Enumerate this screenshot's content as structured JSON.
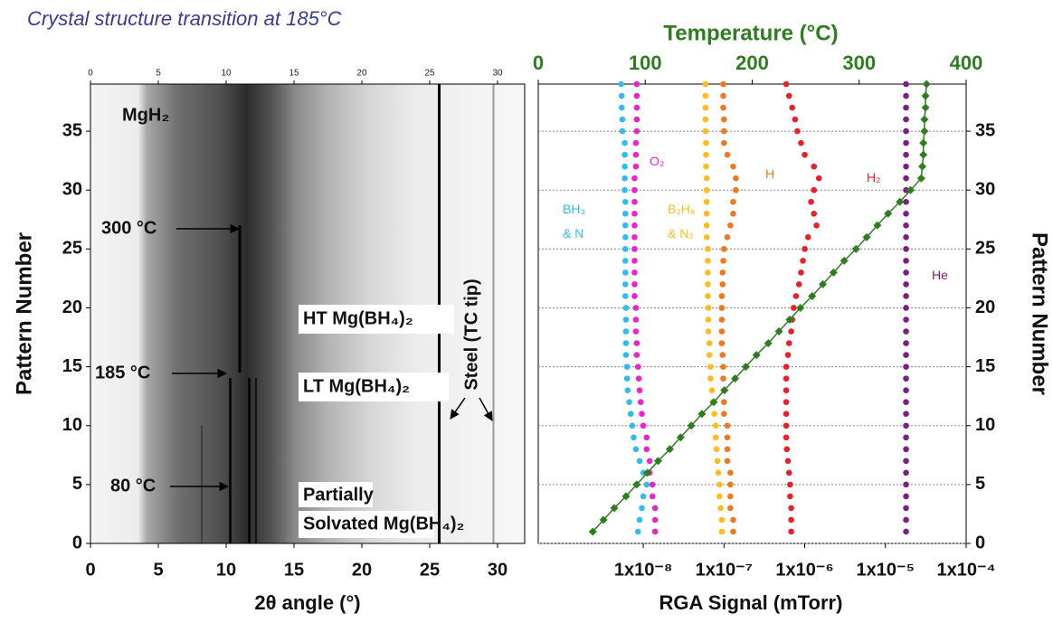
{
  "chart_data": [
    {
      "type": "image",
      "title": "Crystal structure transition at 185°C",
      "xlabel": "2θ angle (°)",
      "ylabel": "Pattern Number",
      "xlim": [
        0,
        32
      ],
      "xticks": [
        0,
        5,
        10,
        15,
        20,
        25,
        30
      ],
      "ylim": [
        0,
        39
      ],
      "yticks": [
        0,
        5,
        10,
        15,
        20,
        25,
        30,
        35
      ],
      "annotations": [
        "MgH₂",
        "300 °C",
        "185 °C",
        "80 °C",
        "HT Mg(BH₄)₂",
        "LT Mg(BH₄)₂",
        "Partially",
        "Solvated Mg(BH₄)₂",
        "Steel (TC tip)"
      ]
    },
    {
      "type": "scatter",
      "xlabel": "RGA Signal (mTorr)",
      "x2label": "Temperature (°C)",
      "ylabel": "Pattern Number",
      "log_x": true,
      "grid": true,
      "xlim": [
        5e-10,
        0.0001
      ],
      "xticks": [
        {
          "value": 1e-08,
          "label": "1x10⁻⁸"
        },
        {
          "value": 1e-07,
          "label": "1x10⁻⁷"
        },
        {
          "value": 1e-06,
          "label": "1x10⁻⁶"
        },
        {
          "value": 1e-05,
          "label": "1x10⁻⁵"
        },
        {
          "value": 0.0001,
          "label": "1x10⁻⁴"
        }
      ],
      "x2lim": [
        0,
        400
      ],
      "x2ticks": [
        0,
        100,
        200,
        300,
        400
      ],
      "ylim": [
        0,
        39
      ],
      "yticks": [
        0,
        5,
        10,
        15,
        20,
        25,
        30,
        35
      ],
      "y": [
        1,
        2,
        3,
        4,
        5,
        6,
        7,
        8,
        9,
        10,
        11,
        12,
        13,
        14,
        15,
        16,
        17,
        18,
        19,
        20,
        21,
        22,
        23,
        24,
        25,
        26,
        27,
        28,
        29,
        30,
        31,
        32,
        33,
        34,
        35,
        36,
        37,
        38,
        39
      ],
      "series": [
        {
          "name": "BH₃ & N",
          "color": "#33bbee",
          "values": [
            8.6e-09,
            9e-09,
            9.6e-09,
            1e-08,
            1.1e-08,
            1e-08,
            9e-09,
            8.1e-09,
            7.6e-09,
            7.3e-09,
            7e-09,
            6.7e-09,
            6.4e-09,
            6.3e-09,
            6.3e-09,
            6.1e-09,
            6.1e-09,
            6.1e-09,
            6.1e-09,
            6.1e-09,
            6e-09,
            6e-09,
            6e-09,
            6e-09,
            6e-09,
            6e-09,
            6e-09,
            6e-09,
            6e-09,
            5.9e-09,
            5.9e-09,
            5.9e-09,
            5.9e-09,
            5.9e-09,
            5.5e-09,
            5.5e-09,
            5.4e-09,
            5.4e-09,
            5.3e-09
          ]
        },
        {
          "name": "O₂",
          "color": "#ee22cc",
          "values": [
            1.4e-08,
            1.4e-08,
            1.4e-08,
            1.3e-08,
            1.3e-08,
            1.2e-08,
            1.2e-08,
            1.1e-08,
            1.1e-08,
            1e-08,
            9.6e-09,
            9.3e-09,
            9e-09,
            8.8e-09,
            8.6e-09,
            8.3e-09,
            8.3e-09,
            8.1e-09,
            8.1e-09,
            8.1e-09,
            7.8e-09,
            7.8e-09,
            7.8e-09,
            7.8e-09,
            7.8e-09,
            7.8e-09,
            7.8e-09,
            7.8e-09,
            7.8e-09,
            7.8e-09,
            7.8e-09,
            8.1e-09,
            8.1e-09,
            8.1e-09,
            8.3e-09,
            8.3e-09,
            8.3e-09,
            8.3e-09,
            8.3e-09
          ]
        },
        {
          "name": "B₂H₆ & N₂",
          "color": "#ffbb22",
          "values": [
            9.4e-08,
            9.4e-08,
            9.1e-08,
            8.8e-08,
            8.8e-08,
            8.5e-08,
            8.3e-08,
            8.1e-08,
            7.9e-08,
            7.9e-08,
            7.6e-08,
            7.3e-08,
            7.1e-08,
            6.8e-08,
            6.8e-08,
            6.6e-08,
            6.6e-08,
            6.4e-08,
            6.4e-08,
            6.4e-08,
            6.3e-08,
            6.3e-08,
            6.3e-08,
            6.3e-08,
            6.3e-08,
            6.1e-08,
            6.1e-08,
            6.1e-08,
            6.1e-08,
            6.1e-08,
            6.1e-08,
            6e-08,
            6e-08,
            6e-08,
            5.9e-08,
            5.9e-08,
            5.9e-08,
            5.9e-08,
            5.9e-08
          ]
        },
        {
          "name": "H",
          "color": "#f07820",
          "values": [
            1.3e-07,
            1.3e-07,
            1.2e-07,
            1.2e-07,
            1.2e-07,
            1.2e-07,
            1.1e-07,
            1.1e-07,
            1.1e-07,
            1.1e-07,
            1e-07,
            1e-07,
            1e-07,
            9.8e-08,
            9.8e-08,
            9.6e-08,
            9.4e-08,
            9.4e-08,
            9.4e-08,
            9.4e-08,
            9.4e-08,
            9.6e-08,
            9.6e-08,
            9.8e-08,
            1e-07,
            1.1e-07,
            1.2e-07,
            1.3e-07,
            1.3e-07,
            1.4e-07,
            1.4e-07,
            1.3e-07,
            1.1e-07,
            1e-07,
            1e-07,
            1e-07,
            9.8e-08,
            9.8e-08,
            9.8e-08
          ]
        },
        {
          "name": "H₂",
          "color": "#e8202a",
          "values": [
            6.8e-07,
            6.8e-07,
            6.8e-07,
            6.6e-07,
            6.6e-07,
            6.4e-07,
            6.2e-07,
            6e-07,
            5.9e-07,
            5.9e-07,
            5.9e-07,
            5.9e-07,
            5.9e-07,
            5.9e-07,
            5.9e-07,
            6.2e-07,
            6.4e-07,
            6.8e-07,
            7e-07,
            7.3e-07,
            7.8e-07,
            8.5e-07,
            9e-07,
            9.5e-07,
            1e-06,
            1.1e-06,
            1.4e-06,
            1.3e-06,
            1.2e-06,
            1.3e-06,
            1.5e-06,
            1.3e-06,
            1e-06,
            9e-07,
            8.1e-07,
            7.6e-07,
            7e-07,
            6.4e-07,
            5.9e-07
          ]
        },
        {
          "name": "He",
          "color": "#7a2080",
          "values": [
            1.8e-05,
            1.8e-05,
            1.8e-05,
            1.8e-05,
            1.8e-05,
            1.8e-05,
            1.8e-05,
            1.8e-05,
            1.8e-05,
            1.8e-05,
            1.8e-05,
            1.8e-05,
            1.8e-05,
            1.8e-05,
            1.8e-05,
            1.8e-05,
            1.8e-05,
            1.8e-05,
            1.8e-05,
            1.8e-05,
            1.8e-05,
            1.8e-05,
            1.8e-05,
            1.8e-05,
            1.8e-05,
            1.8e-05,
            1.8e-05,
            1.8e-05,
            1.8e-05,
            1.8e-05,
            1.8e-05,
            1.8e-05,
            1.8e-05,
            1.8e-05,
            1.8e-05,
            1.8e-05,
            1.8e-05,
            1.8e-05,
            1.8e-05
          ]
        },
        {
          "color": "#2e7d1e",
          "axis": "x2",
          "marker": "diamond",
          "line": true,
          "values": [
            51,
            61,
            71,
            82,
            92,
            102,
            112,
            123,
            133,
            143,
            153,
            164,
            174,
            184,
            194,
            204,
            215,
            225,
            235,
            245,
            256,
            266,
            276,
            286,
            297,
            307,
            317,
            327,
            338,
            348,
            358,
            359,
            360,
            360,
            361,
            361,
            362,
            362,
            363
          ]
        }
      ]
    }
  ]
}
